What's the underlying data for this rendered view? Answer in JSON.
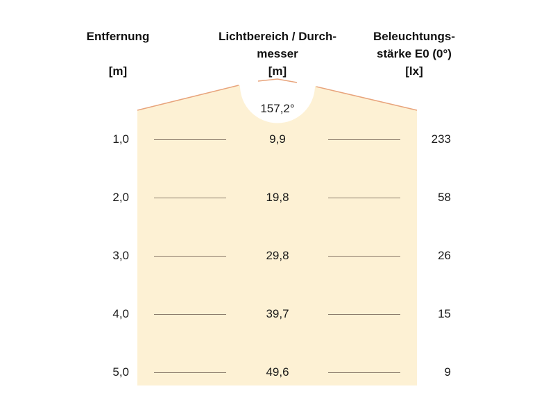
{
  "headers": {
    "distance": [
      "Entfernung",
      "",
      "[m]"
    ],
    "light_area": [
      "Lichtbereich / Durch-",
      "messer",
      "[m]"
    ],
    "illuminance": [
      "Beleuchtungs-",
      "stärke E0 (0°)",
      "[lx]"
    ]
  },
  "beam_angle": "157,2°",
  "colors": {
    "beam_fill": "#fdf1d4",
    "beam_edge": "#e8a47c",
    "tick": "#8a7a6a"
  },
  "rows": [
    {
      "distance": "1,0",
      "diameter": "9,9",
      "lux": "233"
    },
    {
      "distance": "2,0",
      "diameter": "19,8",
      "lux": "58"
    },
    {
      "distance": "3,0",
      "diameter": "29,8",
      "lux": "26"
    },
    {
      "distance": "4,0",
      "diameter": "39,7",
      "lux": "15"
    },
    {
      "distance": "5,0",
      "diameter": "49,6",
      "lux": "9"
    }
  ]
}
